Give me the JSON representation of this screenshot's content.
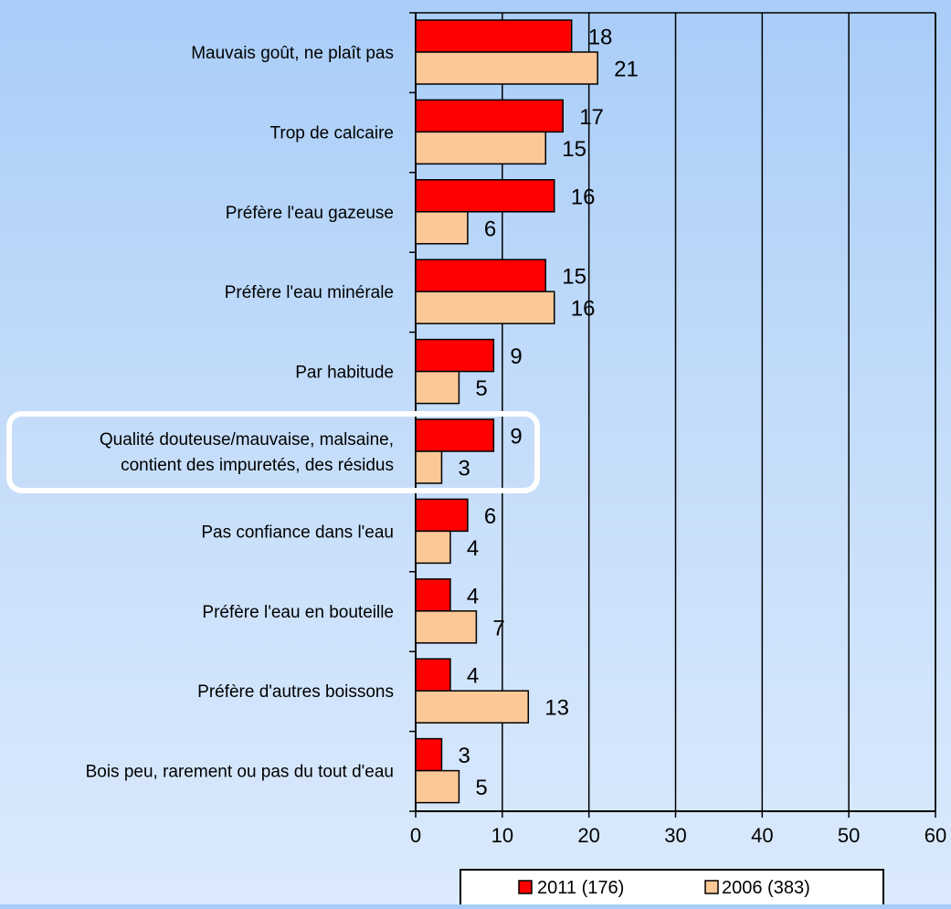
{
  "chart_data": {
    "type": "bar",
    "orientation": "horizontal",
    "categories": [
      "Mauvais goût, ne plaît pas",
      "Trop de calcaire",
      "Préfère l'eau gazeuse",
      "Préfère l'eau minérale",
      "Par habitude",
      "Qualité douteuse/mauvaise, malsaine,\ncontient des impuretés, des résidus",
      "Pas confiance  dans  l'eau",
      "Préfère l'eau en bouteille",
      "Préfère d'autres boissons",
      "Bois peu, rarement ou pas du tout d'eau"
    ],
    "series": [
      {
        "name": "2011 (176)",
        "values": [
          18,
          17,
          16,
          15,
          9,
          9,
          6,
          4,
          4,
          3
        ],
        "color": "#ff0000"
      },
      {
        "name": "2006 (383)",
        "values": [
          21,
          15,
          6,
          16,
          5,
          3,
          4,
          7,
          13,
          5
        ],
        "color": "#fcc898"
      }
    ],
    "xlim": [
      0,
      60
    ],
    "xticks": [
      0,
      10,
      20,
      30,
      40,
      50,
      60
    ],
    "grid": true,
    "legend_position": "bottom",
    "highlighted_category_index": 5,
    "title": "",
    "xlabel": "",
    "ylabel": ""
  }
}
